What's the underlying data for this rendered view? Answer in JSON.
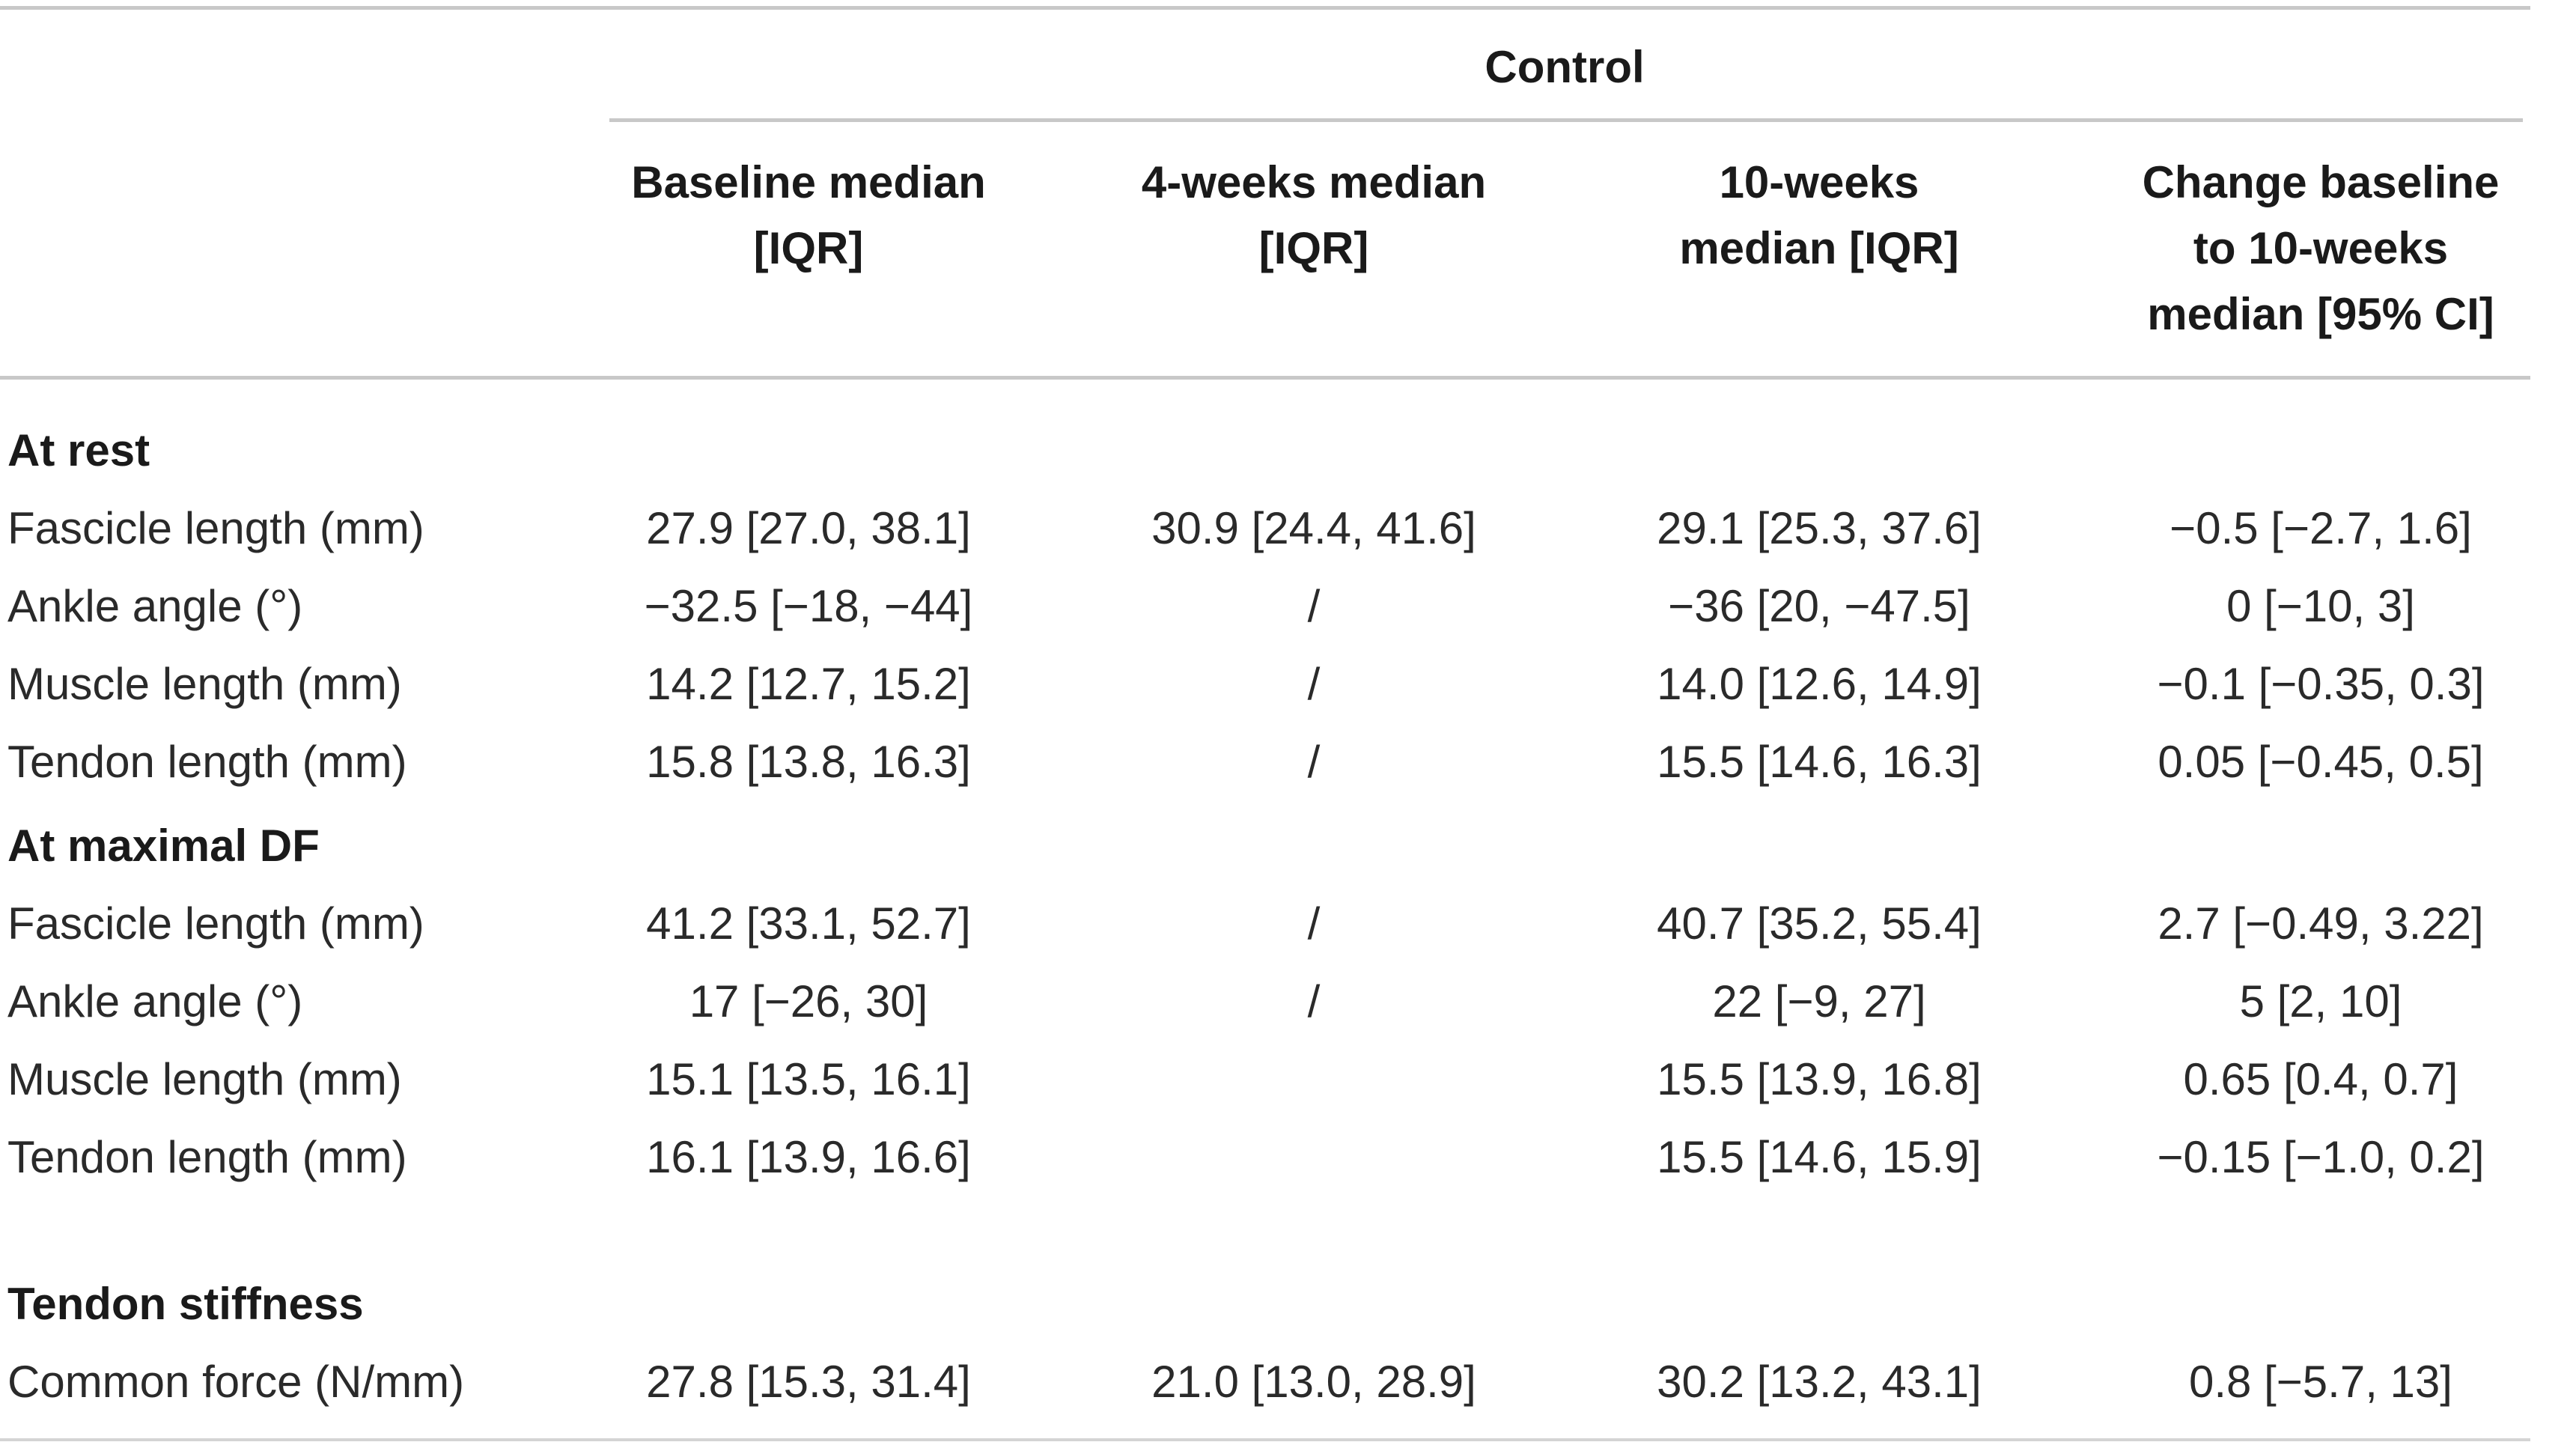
{
  "table": {
    "group_header": "Control",
    "columns": [
      "Baseline median\n[IQR]",
      "4-weeks median\n[IQR]",
      "10-weeks\nmedian [IQR]",
      "Change baseline\nto 10-weeks\nmedian [95% CI]"
    ],
    "rows": [
      {
        "label": "At rest",
        "section": true,
        "values": [
          "",
          "",
          "",
          ""
        ]
      },
      {
        "label": "Fascicle length (mm)",
        "values": [
          "27.9 [27.0, 38.1]",
          "30.9 [24.4, 41.6]",
          "29.1 [25.3, 37.6]",
          "−0.5 [−2.7, 1.6]"
        ]
      },
      {
        "label": "Ankle angle (°)",
        "values": [
          "−32.5 [−18, −44]",
          "/",
          "−36 [20, −47.5]",
          "0 [−10, 3]"
        ]
      },
      {
        "label": "Muscle length (mm)",
        "values": [
          "14.2 [12.7, 15.2]",
          "/",
          "14.0 [12.6, 14.9]",
          "−0.1 [−0.35, 0.3]"
        ]
      },
      {
        "label": "Tendon length (mm)",
        "values": [
          "15.8 [13.8, 16.3]",
          "/",
          "15.5 [14.6, 16.3]",
          "0.05 [−0.45, 0.5]"
        ]
      },
      {
        "label": "At maximal DF",
        "section": true,
        "values": [
          "",
          "",
          "",
          ""
        ]
      },
      {
        "label": "Fascicle length (mm)",
        "values": [
          "41.2 [33.1, 52.7]",
          "/",
          "40.7 [35.2, 55.4]",
          "2.7 [−0.49, 3.22]"
        ]
      },
      {
        "label": "Ankle angle (°)",
        "values": [
          "17 [−26, 30]",
          "/",
          "22 [−9, 27]",
          "5 [2, 10]"
        ]
      },
      {
        "label": "Muscle length (mm)",
        "values": [
          "15.1 [13.5, 16.1]",
          "",
          "15.5 [13.9, 16.8]",
          "0.65 [0.4, 0.7]"
        ]
      },
      {
        "label": "Tendon length (mm)",
        "values": [
          "16.1 [13.9, 16.6]",
          "",
          "15.5 [14.6, 15.9]",
          "−0.15 [−1.0, 0.2]"
        ]
      },
      {
        "label": "Tendon stiffness",
        "section": true,
        "values": [
          "",
          "",
          "",
          ""
        ]
      },
      {
        "label": "Common force (N/mm)",
        "values": [
          "27.8 [15.3, 31.4]",
          "21.0 [13.0, 28.9]",
          "30.2 [13.2, 43.1]",
          "0.8 [−5.7, 13]"
        ]
      }
    ]
  }
}
